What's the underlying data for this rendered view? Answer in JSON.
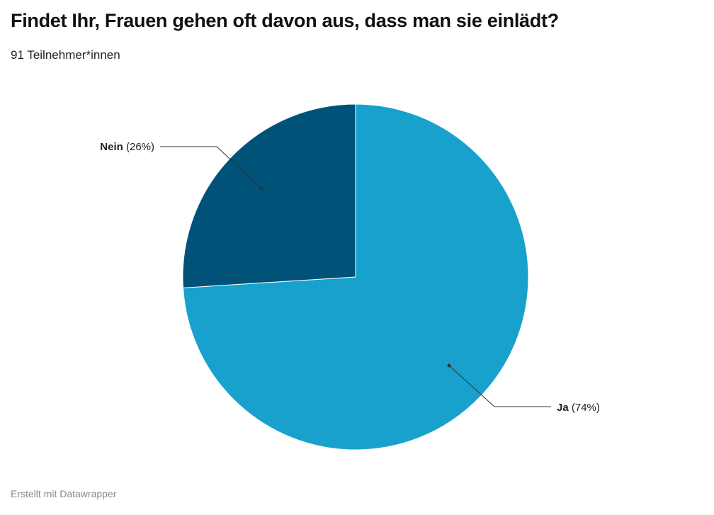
{
  "title": "Findet Ihr, Frauen gehen oft davon aus, dass man sie einlädt?",
  "subtitle": "91 Teilnehmer*innen",
  "footer": "Erstellt mit Datawrapper",
  "chart_data": {
    "type": "pie",
    "title": "Findet Ihr, Frauen gehen oft davon aus, dass man sie einlädt?",
    "subtitle": "91 Teilnehmer*innen",
    "slices": [
      {
        "label": "Ja",
        "value": 74,
        "display": "(74%)",
        "color": "#18a1cd"
      },
      {
        "label": "Nein",
        "value": 26,
        "display": "(26%)",
        "color": "#005279"
      }
    ]
  }
}
